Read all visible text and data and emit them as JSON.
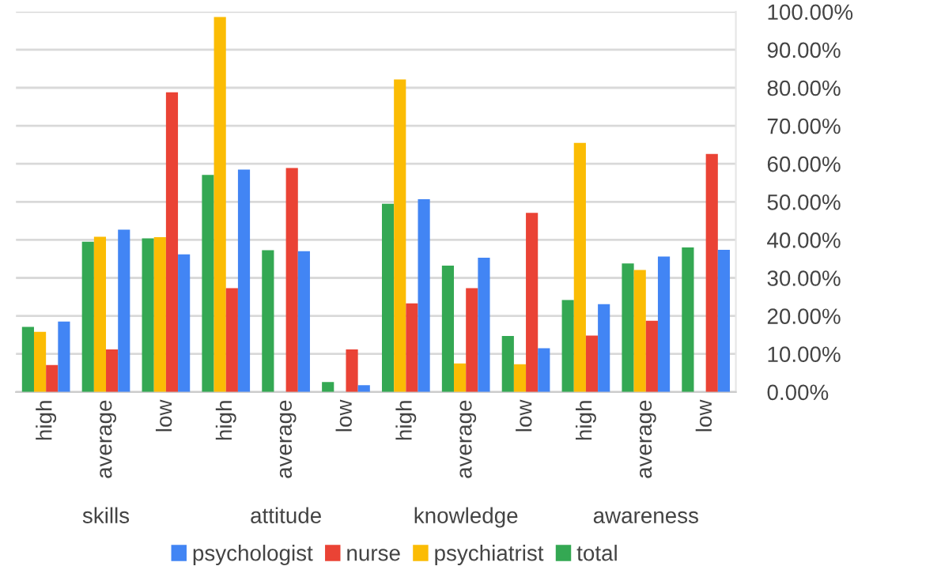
{
  "chart_data": {
    "type": "bar",
    "categories": [
      "high",
      "average",
      "low",
      "high",
      "average",
      "low",
      "high",
      "average",
      "low",
      "high",
      "average",
      "low"
    ],
    "series": [
      {
        "name": "total",
        "color": "#34a853",
        "values": [
          17.1,
          39.5,
          40.4,
          57.1,
          37.3,
          2.6,
          49.5,
          33.2,
          14.7,
          24.2,
          33.8,
          38.0
        ]
      },
      {
        "name": "psychiatrist",
        "color": "#fbbc04",
        "values": [
          15.8,
          40.8,
          40.7,
          98.6,
          0,
          0,
          82.2,
          7.5,
          7.3,
          65.5,
          32.1,
          0
        ]
      },
      {
        "name": "nurse",
        "color": "#ea4335",
        "values": [
          7.1,
          11.2,
          78.8,
          27.3,
          58.9,
          11.2,
          23.3,
          27.3,
          47.1,
          14.8,
          18.7,
          62.6
        ]
      },
      {
        "name": "psychologist",
        "color": "#4285f4",
        "values": [
          18.5,
          42.7,
          36.2,
          58.5,
          37.0,
          1.8,
          50.7,
          35.3,
          11.5,
          23.1,
          35.6,
          37.4
        ]
      }
    ],
    "annotations": [
      "skills",
      "attitude",
      "knowledge",
      "awareness"
    ],
    "ylim": [
      0,
      100
    ],
    "yticks": [
      {
        "value": 0,
        "label": "0.00%"
      },
      {
        "value": 10,
        "label": "10.00%"
      },
      {
        "value": 20,
        "label": "20.00%"
      },
      {
        "value": 30,
        "label": "30.00%"
      },
      {
        "value": 40,
        "label": "40.00%"
      },
      {
        "value": 50,
        "label": "50.00%"
      },
      {
        "value": 60,
        "label": "60.00%"
      },
      {
        "value": 70,
        "label": "70.00%"
      },
      {
        "value": 80,
        "label": "80.00%"
      },
      {
        "value": 90,
        "label": "90.00%"
      },
      {
        "value": 100,
        "label": "100.00%"
      }
    ],
    "grid": "y",
    "legend": "bottom"
  }
}
